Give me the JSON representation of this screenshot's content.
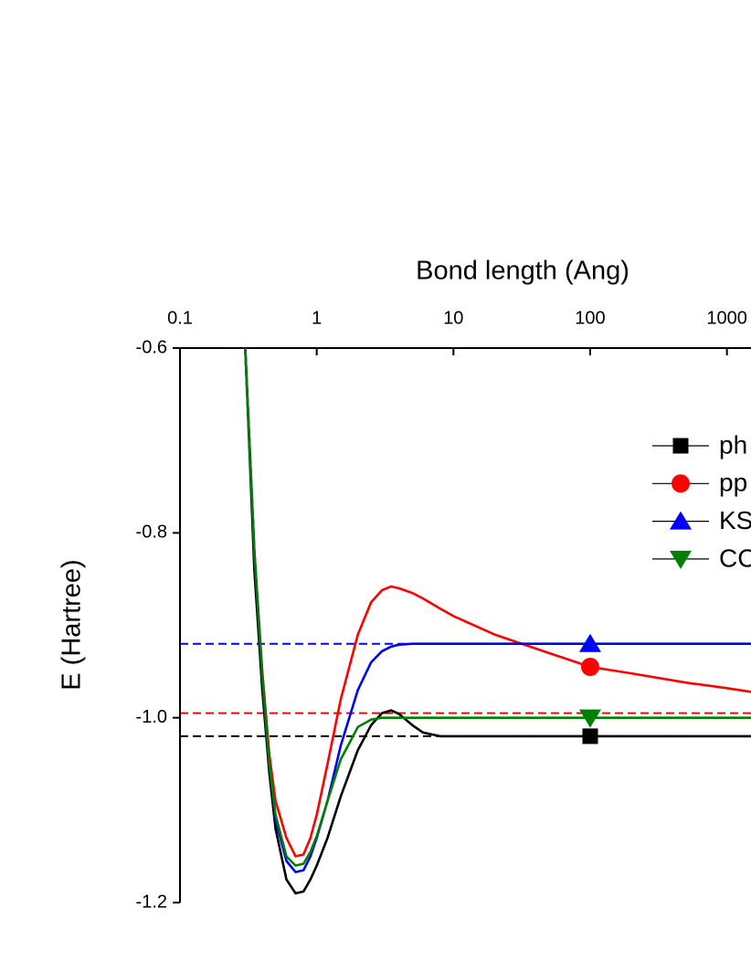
{
  "chart_data": {
    "type": "line",
    "x_label": "Bond length (Ang)",
    "y_label": "E (Hartree)",
    "x_scale": "log",
    "xlim": [
      0.1,
      1500
    ],
    "xticks": [
      0.1,
      1,
      10,
      100,
      1000
    ],
    "ylim": [
      -1.2,
      -0.6
    ],
    "yticks": [
      -0.6,
      -0.8,
      {
        "value": -1,
        "label": "-1.0"
      },
      -1.2
    ],
    "marker_x": 100,
    "x": [
      0.3,
      0.35,
      0.4,
      0.45,
      0.5,
      0.6,
      0.7,
      0.8,
      0.9,
      1,
      1.2,
      1.5,
      2,
      2.5,
      3,
      3.5,
      4,
      5,
      6,
      8,
      10,
      20,
      50,
      100,
      200,
      500,
      1000,
      1500
    ],
    "series": [
      {
        "name": "ph",
        "color": "#000000",
        "marker": "square",
        "values": [
          -0.6,
          -0.84,
          -0.97,
          -1.06,
          -1.12,
          -1.175,
          -1.19,
          -1.188,
          -1.175,
          -1.16,
          -1.13,
          -1.085,
          -1.035,
          -1.008,
          -0.995,
          -0.992,
          -0.996,
          -1.008,
          -1.016,
          -1.02,
          -1.02,
          -1.02,
          -1.02,
          -1.02,
          -1.02,
          -1.02,
          -1.02,
          -1.02
        ]
      },
      {
        "name": "pp",
        "color": "#ff0000",
        "marker": "circle",
        "values": [
          -0.6,
          -0.82,
          -0.95,
          -1.04,
          -1.09,
          -1.13,
          -1.15,
          -1.148,
          -1.13,
          -1.105,
          -1.05,
          -0.98,
          -0.91,
          -0.875,
          -0.862,
          -0.858,
          -0.86,
          -0.865,
          -0.871,
          -0.882,
          -0.89,
          -0.91,
          -0.93,
          -0.945,
          -0.952,
          -0.962,
          -0.968,
          -0.972
        ]
      },
      {
        "name": "KS",
        "color": "#0000ff",
        "marker": "triangle-up",
        "values": [
          -0.6,
          -0.82,
          -0.955,
          -1.05,
          -1.11,
          -1.155,
          -1.167,
          -1.165,
          -1.15,
          -1.13,
          -1.09,
          -1.03,
          -0.97,
          -0.94,
          -0.928,
          -0.923,
          -0.921,
          -0.92,
          -0.92,
          -0.92,
          -0.92,
          -0.92,
          -0.92,
          -0.92,
          -0.92,
          -0.92,
          -0.92,
          -0.92
        ]
      },
      {
        "name": "CC",
        "color": "#008000",
        "marker": "triangle-down",
        "values": [
          -0.6,
          -0.82,
          -0.955,
          -1.05,
          -1.105,
          -1.15,
          -1.16,
          -1.158,
          -1.145,
          -1.128,
          -1.09,
          -1.045,
          -1.01,
          -1.002,
          -1.0,
          -1.0,
          -1.0,
          -1.0,
          -1.0,
          -1.0,
          -1.0,
          -1.0,
          -1.0,
          -1.0,
          -1.0,
          -1.0,
          -1.0,
          -1.0
        ]
      }
    ],
    "reference_lines": [
      {
        "value": -0.92,
        "color": "#0000ff"
      },
      {
        "value": -0.995,
        "color": "#ff0000"
      },
      {
        "value": -1.02,
        "color": "#000000"
      }
    ]
  }
}
